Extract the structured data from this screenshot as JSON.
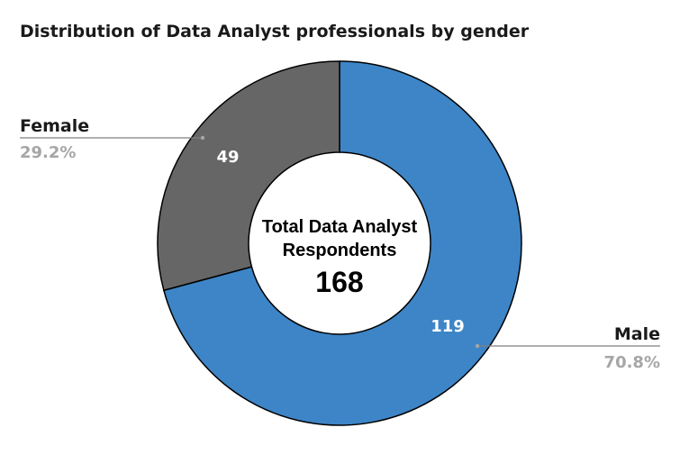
{
  "chart_data": {
    "type": "pie",
    "title": "Distribution of Data Analyst professionals by gender",
    "center_label_line1": "Total Data Analyst",
    "center_label_line2": "Respondents",
    "center_total": "168",
    "categories": [
      "Male",
      "Female"
    ],
    "values": [
      119,
      49
    ],
    "percent_labels": [
      "70.8%",
      "29.2%"
    ],
    "colors": [
      "#3d85c6",
      "#666666"
    ],
    "hole": true
  }
}
